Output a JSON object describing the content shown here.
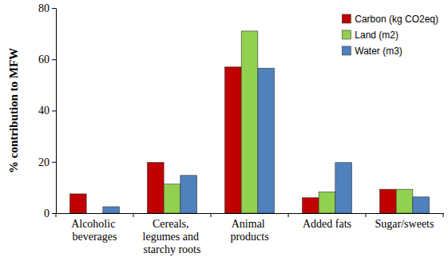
{
  "chart_data": {
    "type": "bar",
    "y_label": "% contribution to MFW",
    "categories": [
      "Alcoholic beverages",
      "Cereals, legumes and starchy roots",
      "Animal products",
      "Added fats",
      "Sugar/sweets"
    ],
    "series": [
      {
        "name": "Carbon (kg CO2eq)",
        "color": "#c00000",
        "values": [
          7.5,
          19.8,
          57,
          6,
          9.3
        ]
      },
      {
        "name": "Land (m2)",
        "color": "#92d050",
        "values": [
          0,
          11.3,
          71,
          8.3,
          9.3
        ]
      },
      {
        "name": "Water (m3)",
        "color": "#4f81bd",
        "values": [
          2.5,
          14.7,
          56.5,
          19.7,
          6.3
        ]
      }
    ],
    "ylim": [
      0,
      80
    ],
    "yticks": [
      0,
      20,
      40,
      60,
      80
    ],
    "grid": false,
    "legend": "top-right"
  }
}
